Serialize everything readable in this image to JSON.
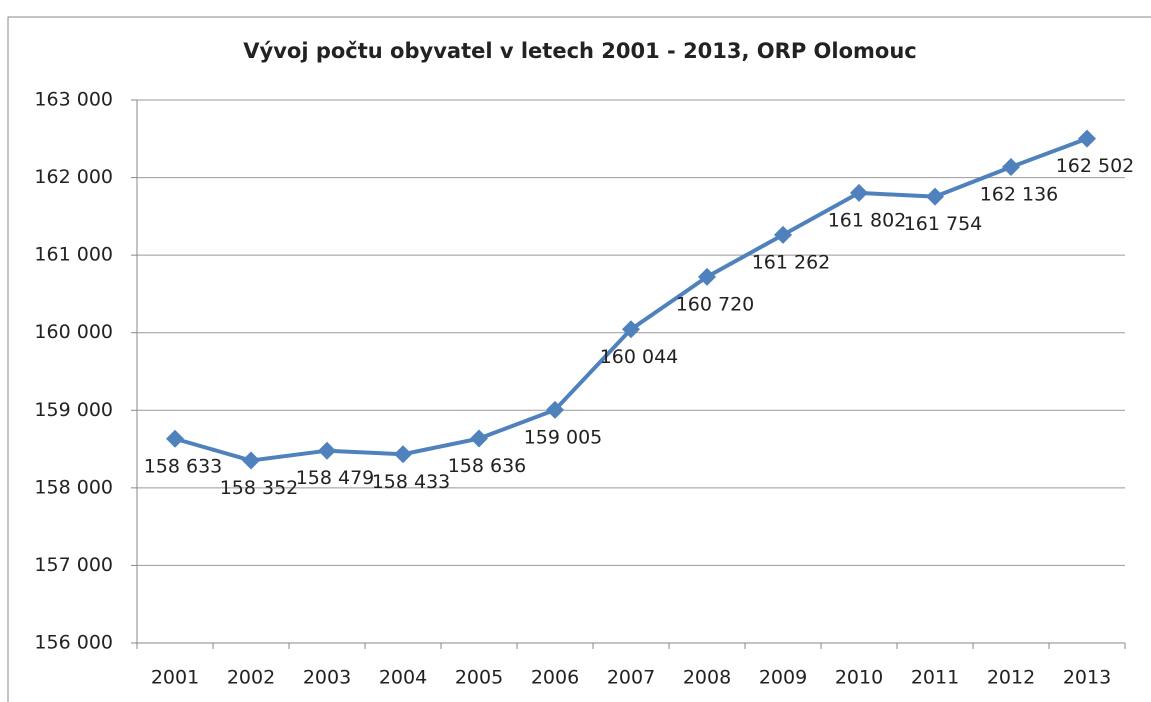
{
  "chart_data": {
    "type": "line",
    "title": "Vývoj počtu obyvatel v letech 2001 - 2013, ORP Olomouc",
    "categories": [
      "2001",
      "2002",
      "2003",
      "2004",
      "2005",
      "2006",
      "2007",
      "2008",
      "2009",
      "2010",
      "2011",
      "2012",
      "2013"
    ],
    "values": [
      158633,
      158352,
      158479,
      158433,
      158636,
      159005,
      160044,
      160720,
      161262,
      161802,
      161754,
      162136,
      162502
    ],
    "value_labels": [
      "158 633",
      "158 352",
      "158 479",
      "158 433",
      "158 636",
      "159 005",
      "160 044",
      "160 720",
      "161 262",
      "161 802",
      "161 754",
      "162 136",
      "162 502"
    ],
    "color": "#4f81bd",
    "ylim": [
      156000,
      163000
    ],
    "yticks": [
      {
        "value": 156000,
        "label": "156 000"
      },
      {
        "value": 157000,
        "label": "157 000"
      },
      {
        "value": 158000,
        "label": "158 000"
      },
      {
        "value": 159000,
        "label": "159 000"
      },
      {
        "value": 160000,
        "label": "160 000"
      },
      {
        "value": 161000,
        "label": "161 000"
      },
      {
        "value": 162000,
        "label": "162 000"
      },
      {
        "value": 163000,
        "label": "163 000"
      }
    ],
    "grid": true
  }
}
